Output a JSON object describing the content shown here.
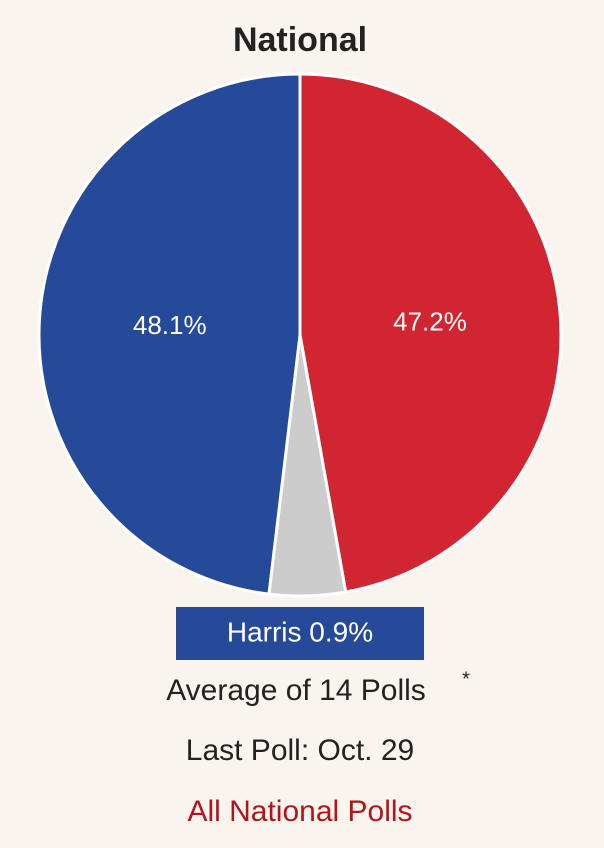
{
  "chart_data": {
    "type": "pie",
    "title": "National",
    "categories": [
      null,
      null,
      null
    ],
    "values": [
      47.2,
      4.7,
      48.1
    ],
    "value_labels": [
      "47.2%",
      null,
      "48.1%"
    ],
    "colors": [
      "#d12531",
      "#cccccc",
      "#244a99"
    ]
  },
  "summary": {
    "leader": "Harris 0.9%",
    "average": "Average of 14 Polls",
    "footnote_mark": "*",
    "last_poll": "Last Poll: Oct. 29",
    "link": "All National Polls"
  }
}
